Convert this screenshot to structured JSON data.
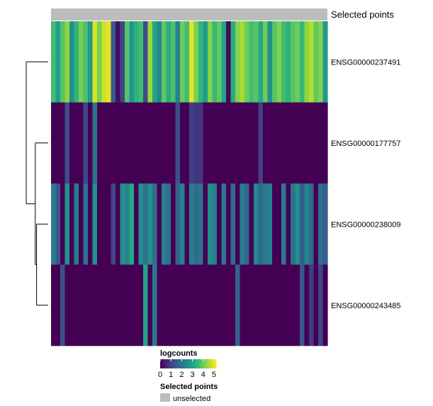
{
  "chart_data": {
    "type": "heatmap",
    "title": "",
    "annotation": {
      "name": "Selected points",
      "value": "unselected",
      "color": "#bdbdbd"
    },
    "rows": [
      "ENSG00000237491",
      "ENSG00000177757",
      "ENSG00000238009",
      "ENSG00000243485"
    ],
    "n_columns": 60,
    "values": [
      [
        3.6,
        2.9,
        3.8,
        4.3,
        2.6,
        3.4,
        4.1,
        3.7,
        2.8,
        4.9,
        4.1,
        4.8,
        5.0,
        1.5,
        0.2,
        1.1,
        3.8,
        2.7,
        3.3,
        3.6,
        1.2,
        4.4,
        3.0,
        2.4,
        3.9,
        3.2,
        3.7,
        2.3,
        4.0,
        3.6,
        5.0,
        4.1,
        3.4,
        2.9,
        4.2,
        3.5,
        3.9,
        3.0,
        0.1,
        3.2,
        4.2,
        4.5,
        4.0,
        3.6,
        3.8,
        3.1,
        4.0,
        2.6,
        3.8,
        4.2,
        3.6,
        3.3,
        3.8,
        4.0,
        3.5,
        4.3,
        4.6,
        3.9,
        4.2,
        2.8
      ],
      [
        0.0,
        0.0,
        0.0,
        1.2,
        0.0,
        0.0,
        0.0,
        1.1,
        0.0,
        2.0,
        0.0,
        0.0,
        0.0,
        0.0,
        0.0,
        0.0,
        0.0,
        0.0,
        0.0,
        0.0,
        0.0,
        0.0,
        0.0,
        0.0,
        0.0,
        0.0,
        0.0,
        1.3,
        0.0,
        0.0,
        1.0,
        0.8,
        0.8,
        0.0,
        0.0,
        0.0,
        0.0,
        0.0,
        0.0,
        0.0,
        0.0,
        0.0,
        0.0,
        0.0,
        0.0,
        1.0,
        0.0,
        0.0,
        0.0,
        0.0,
        0.0,
        0.0,
        0.0,
        0.0,
        0.0,
        0.0,
        0.0,
        0.0,
        0.0,
        0.0
      ],
      [
        2.2,
        1.4,
        0.0,
        2.7,
        0.0,
        2.2,
        0.0,
        2.0,
        0.0,
        2.6,
        0.0,
        0.0,
        0.0,
        1.1,
        0.0,
        2.6,
        2.3,
        3.1,
        0.0,
        2.6,
        1.9,
        2.6,
        1.8,
        0.0,
        2.2,
        1.9,
        0.0,
        1.6,
        2.3,
        0.0,
        2.2,
        1.8,
        2.0,
        0.0,
        2.5,
        2.2,
        0.0,
        2.1,
        0.0,
        1.8,
        0.0,
        2.2,
        1.7,
        0.0,
        2.4,
        1.8,
        2.1,
        2.3,
        0.0,
        0.0,
        2.2,
        0.0,
        1.9,
        2.6,
        1.5,
        2.4,
        1.8,
        0.0,
        1.9,
        1.6
      ],
      [
        0.0,
        0.0,
        1.3,
        0.0,
        0.0,
        0.0,
        0.0,
        0.0,
        0.0,
        0.0,
        0.0,
        0.0,
        0.0,
        0.0,
        0.0,
        0.0,
        0.0,
        0.0,
        0.0,
        0.0,
        3.0,
        0.0,
        2.1,
        0.0,
        0.0,
        0.0,
        0.0,
        0.0,
        0.0,
        0.0,
        0.0,
        0.0,
        0.0,
        0.0,
        0.0,
        0.0,
        0.0,
        0.0,
        0.0,
        0.0,
        1.6,
        0.0,
        0.0,
        0.0,
        0.0,
        0.0,
        0.0,
        0.0,
        0.0,
        0.0,
        0.0,
        0.0,
        0.0,
        0.0,
        1.4,
        0.0,
        0.9,
        0.0,
        1.1,
        0.0
      ]
    ],
    "colorscale": {
      "name": "viridis",
      "min": 0,
      "max": 5.2,
      "stops": [
        "#440154",
        "#482878",
        "#3e4989",
        "#31688e",
        "#26828e",
        "#1f9e89",
        "#35b779",
        "#6ece58",
        "#b5de2b",
        "#fde725"
      ]
    },
    "legend": {
      "title": "logcounts",
      "ticks": [
        "0",
        "1",
        "2",
        "3",
        "4",
        "5"
      ],
      "position": "bottom-center"
    },
    "dendrogram": {
      "side": "left",
      "merges": [
        [
          3,
          2
        ],
        [
          "m1",
          1
        ],
        [
          "m2",
          0
        ]
      ],
      "heights": [
        0.45,
        0.5,
        0.85
      ]
    },
    "annotation_legend": {
      "title": "Selected points",
      "items": [
        {
          "label": "unselected",
          "color": "#bdbdbd"
        }
      ]
    }
  }
}
